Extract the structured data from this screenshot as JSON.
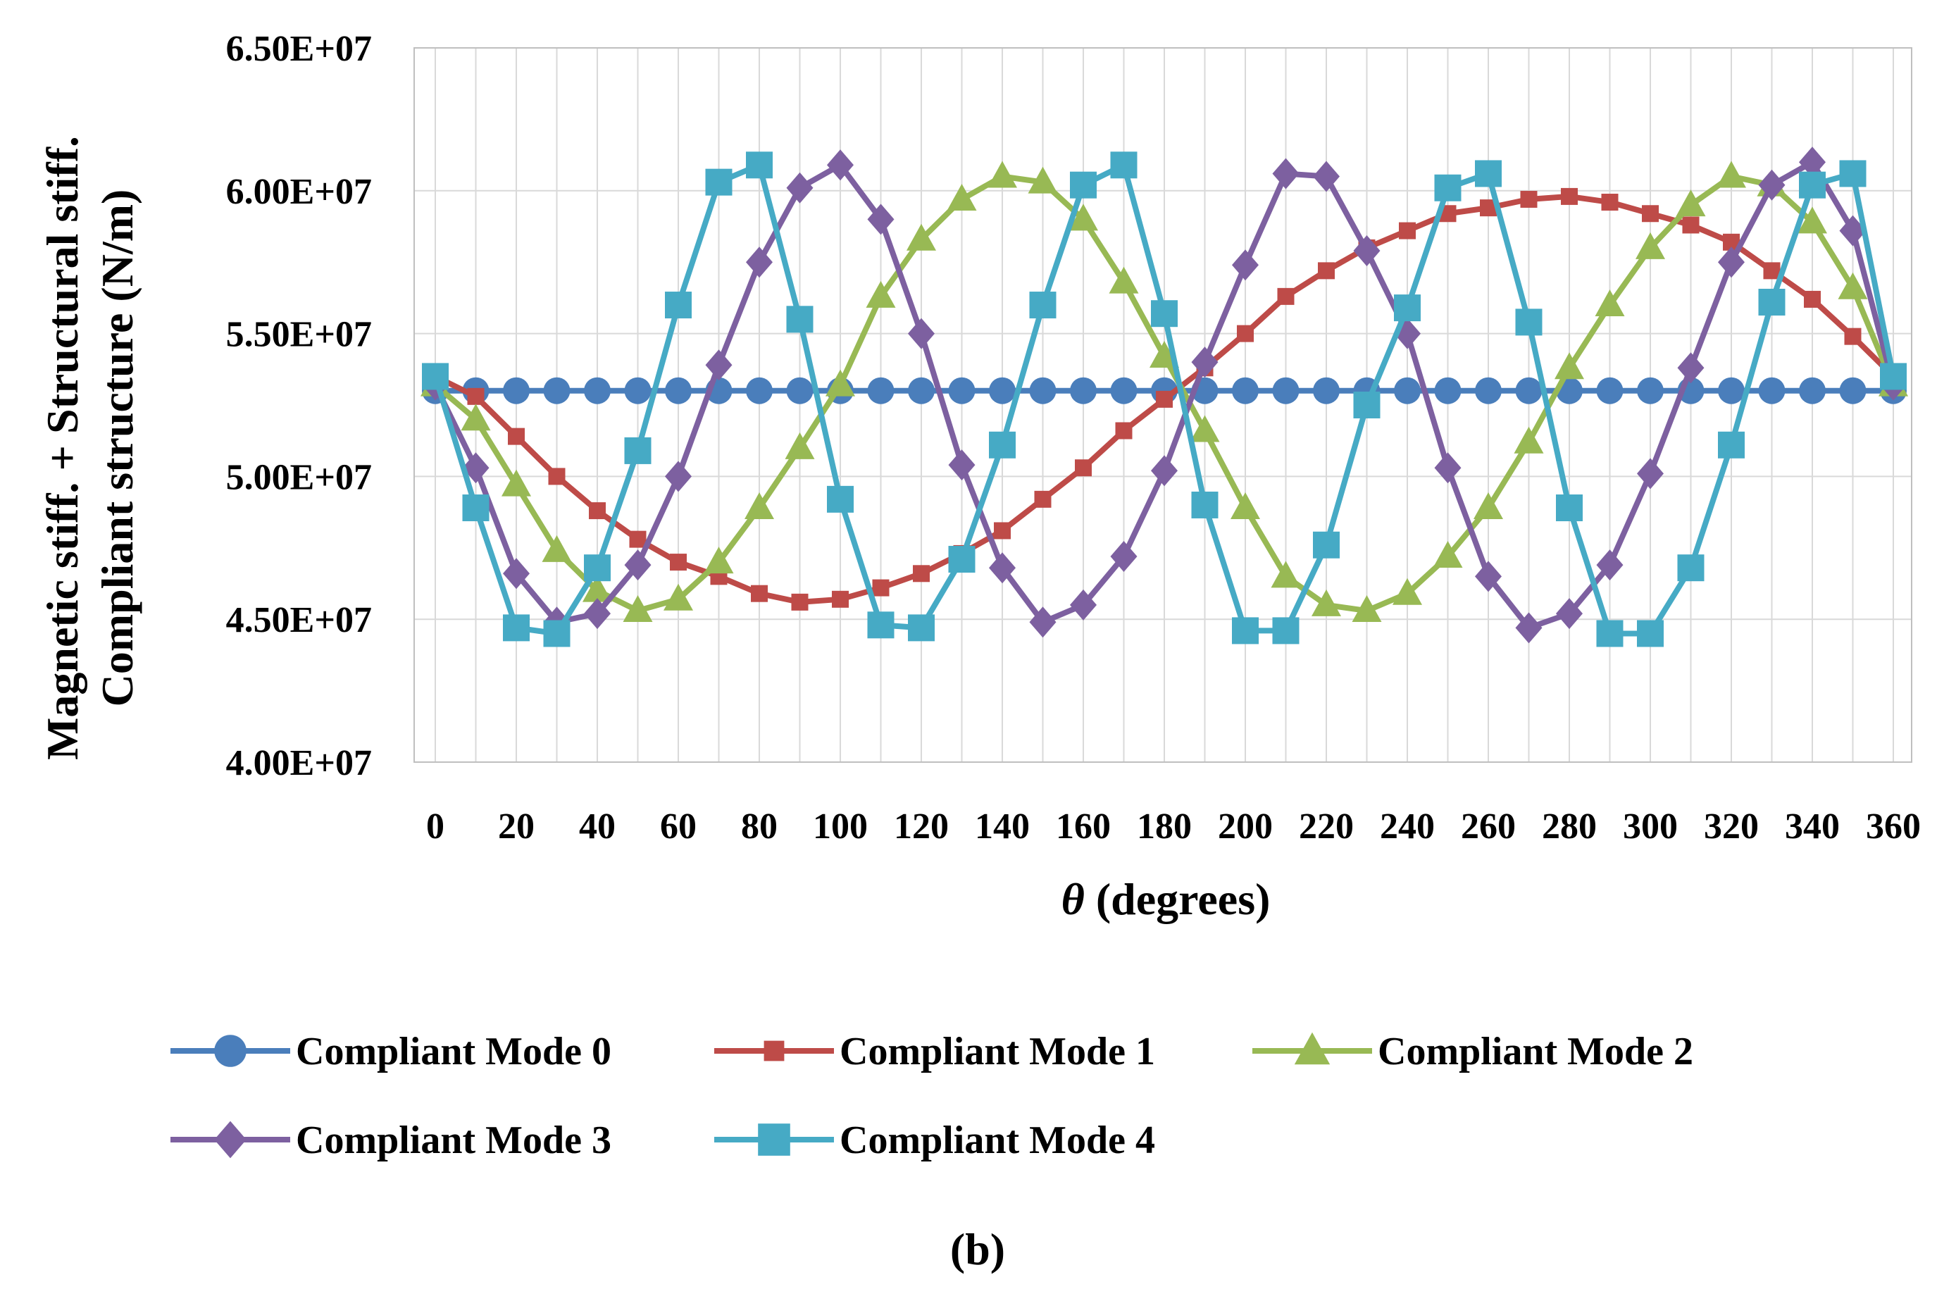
{
  "chart_data": {
    "type": "line",
    "caption": "(b)",
    "xlabel": {
      "symbol": "θ",
      "text": " (degrees)"
    },
    "ylabel": [
      "Magnetic stiff. + Structural stiff.",
      "Compliant structure (N/m)"
    ],
    "ylim": [
      40000000,
      65000000
    ],
    "xlim": [
      0,
      360
    ],
    "y_ticks": [
      {
        "value": 40000000,
        "label": "4.00E+07"
      },
      {
        "value": 45000000,
        "label": "4.50E+07"
      },
      {
        "value": 50000000,
        "label": "5.00E+07"
      },
      {
        "value": 55000000,
        "label": "5.50E+07"
      },
      {
        "value": 60000000,
        "label": "6.00E+07"
      },
      {
        "value": 65000000,
        "label": "6.50E+07"
      }
    ],
    "x_ticks": [
      {
        "value": 0,
        "label": "0"
      },
      {
        "value": 20,
        "label": "20"
      },
      {
        "value": 40,
        "label": "40"
      },
      {
        "value": 60,
        "label": "60"
      },
      {
        "value": 80,
        "label": "80"
      },
      {
        "value": 100,
        "label": "100"
      },
      {
        "value": 120,
        "label": "120"
      },
      {
        "value": 140,
        "label": "140"
      },
      {
        "value": 160,
        "label": "160"
      },
      {
        "value": 180,
        "label": "180"
      },
      {
        "value": 200,
        "label": "200"
      },
      {
        "value": 220,
        "label": "220"
      },
      {
        "value": 240,
        "label": "240"
      },
      {
        "value": 260,
        "label": "260"
      },
      {
        "value": 280,
        "label": "280"
      },
      {
        "value": 300,
        "label": "300"
      },
      {
        "value": 320,
        "label": "320"
      },
      {
        "value": 340,
        "label": "340"
      },
      {
        "value": 360,
        "label": "360"
      }
    ],
    "x": [
      0,
      10,
      20,
      30,
      40,
      50,
      60,
      70,
      80,
      90,
      100,
      110,
      120,
      130,
      140,
      150,
      160,
      170,
      180,
      190,
      200,
      210,
      220,
      230,
      240,
      250,
      260,
      270,
      280,
      290,
      300,
      310,
      320,
      330,
      340,
      350,
      360
    ],
    "series": [
      {
        "name": "Compliant Mode 0",
        "color": "#4a7ebb",
        "marker": "circle",
        "values": [
          53000000,
          53000000,
          53000000,
          53000000,
          53000000,
          53000000,
          53000000,
          53000000,
          53000000,
          53000000,
          53000000,
          53000000,
          53000000,
          53000000,
          53000000,
          53000000,
          53000000,
          53000000,
          53000000,
          53000000,
          53000000,
          53000000,
          53000000,
          53000000,
          53000000,
          53000000,
          53000000,
          53000000,
          53000000,
          53000000,
          53000000,
          53000000,
          53000000,
          53000000,
          53000000,
          53000000,
          53000000
        ]
      },
      {
        "name": "Compliant Mode 1",
        "color": "#be4b48",
        "marker": "cross",
        "values": [
          53500000,
          52800000,
          51400000,
          50000000,
          48800000,
          47800000,
          47000000,
          46500000,
          45900000,
          45600000,
          45700000,
          46100000,
          46600000,
          47300000,
          48100000,
          49200000,
          50300000,
          51600000,
          52700000,
          53800000,
          55000000,
          56300000,
          57200000,
          58000000,
          58600000,
          59200000,
          59400000,
          59700000,
          59800000,
          59600000,
          59200000,
          58800000,
          58200000,
          57200000,
          56200000,
          54900000,
          53500000
        ]
      },
      {
        "name": "Compliant Mode 2",
        "color": "#98b954",
        "marker": "triangle",
        "values": [
          53200000,
          52000000,
          49700000,
          47400000,
          46000000,
          45300000,
          45700000,
          47000000,
          48900000,
          51000000,
          53200000,
          56300000,
          58300000,
          59700000,
          60500000,
          60300000,
          59000000,
          56800000,
          54200000,
          51600000,
          48900000,
          46500000,
          45500000,
          45300000,
          45900000,
          47200000,
          48900000,
          51200000,
          53800000,
          56000000,
          58000000,
          59500000,
          60500000,
          60200000,
          58900000,
          56600000,
          53200000
        ]
      },
      {
        "name": "Compliant Mode 3",
        "color": "#7d60a0",
        "marker": "diamond",
        "values": [
          53200000,
          50300000,
          46600000,
          44900000,
          45200000,
          46900000,
          50000000,
          53900000,
          57500000,
          60100000,
          60900000,
          59000000,
          55000000,
          50400000,
          46800000,
          44900000,
          45500000,
          47200000,
          50200000,
          54000000,
          57400000,
          60600000,
          60500000,
          57900000,
          55000000,
          50300000,
          46500000,
          44700000,
          45200000,
          46900000,
          50100000,
          53800000,
          57500000,
          60200000,
          61000000,
          58600000,
          53200000
        ]
      },
      {
        "name": "Compliant Mode 4",
        "color": "#46aac5",
        "marker": "square",
        "values": [
          53500000,
          48900000,
          44700000,
          44500000,
          46800000,
          50900000,
          56000000,
          60300000,
          60900000,
          55500000,
          49200000,
          44800000,
          44700000,
          47100000,
          51100000,
          56000000,
          60200000,
          60900000,
          55700000,
          49000000,
          44600000,
          44600000,
          47600000,
          52500000,
          55900000,
          60100000,
          60600000,
          55400000,
          48900000,
          44500000,
          44500000,
          46800000,
          51100000,
          56100000,
          60200000,
          60600000,
          53500000
        ]
      }
    ]
  }
}
